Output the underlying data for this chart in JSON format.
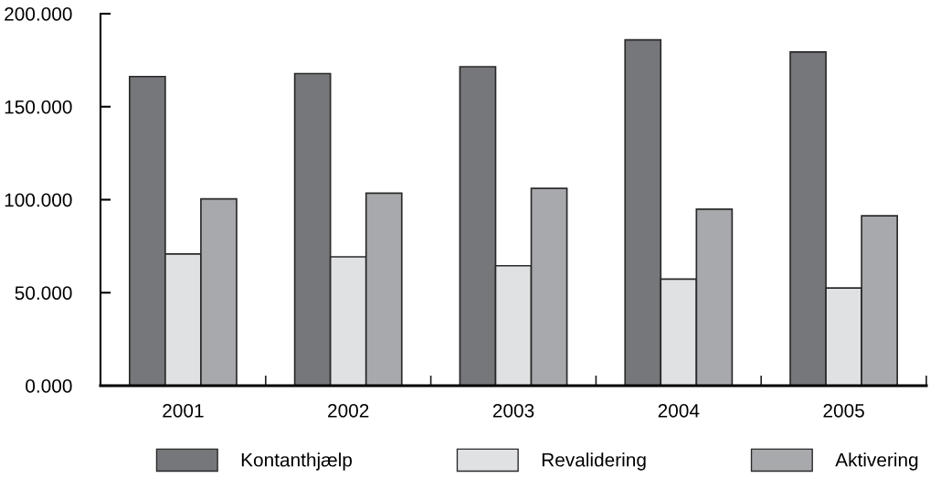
{
  "chart_data": {
    "type": "bar",
    "categories": [
      "2001",
      "2002",
      "2003",
      "2004",
      "2005"
    ],
    "series": [
      {
        "name": "Kontanthjælp",
        "color": "#76777b",
        "values": [
          166.2,
          167.8,
          171.5,
          185.9,
          179.4
        ]
      },
      {
        "name": "Revalidering",
        "color": "#e0e1e3",
        "values": [
          70.8,
          69.3,
          64.5,
          57.3,
          52.5
        ]
      },
      {
        "name": "Aktivering",
        "color": "#a8a9ad",
        "values": [
          100.4,
          103.5,
          106.1,
          94.9,
          91.3
        ]
      }
    ],
    "ylim": [
      0,
      200
    ],
    "yticks": [
      {
        "value": 0,
        "label": "0.000"
      },
      {
        "value": 50,
        "label": "50.000"
      },
      {
        "value": 100,
        "label": "100.000"
      },
      {
        "value": 150,
        "label": "150.000"
      },
      {
        "value": 200,
        "label": "200.000"
      }
    ],
    "grid": false,
    "legend": "bottom"
  }
}
